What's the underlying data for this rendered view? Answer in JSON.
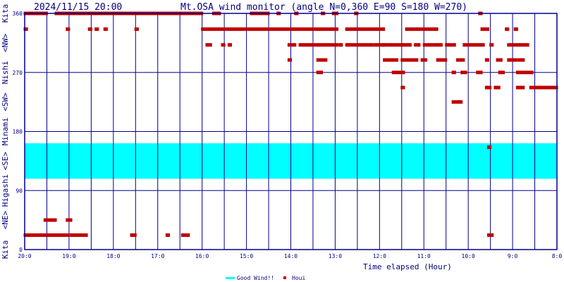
{
  "header": {
    "datetime": "2024/11/15 20:00",
    "title": "Mt.OSA wind monitor (angle N=0,360 E=90 S=180 W=270)"
  },
  "colors": {
    "frame": "#00008b",
    "band": "#00ffff",
    "marker": "#c00000",
    "text": "#000080"
  },
  "chart_data": {
    "type": "scatter",
    "title": "Mt.OSA wind monitor (angle N=0,360 E=90 S=180 W=270)",
    "xlabel": "Time elapsed (Hour)",
    "ylabel": "Kita <NE> Higashi <SE> Minami <SW> Nishi <NW> Kita",
    "xlim": [
      20,
      8
    ],
    "ylim": [
      0,
      360
    ],
    "x_ticks": [
      20,
      19,
      18,
      17,
      16,
      15,
      14,
      13,
      12,
      11,
      10,
      9,
      8
    ],
    "x_tick_labels": [
      "20:0",
      "19:0",
      "18:0",
      "17:0",
      "16:0",
      "15:0",
      "14:0",
      "13:0",
      "12:0",
      "11:0",
      "10:0",
      "9:0",
      "8:0"
    ],
    "y_ticks": [
      0,
      90,
      180,
      270,
      360
    ],
    "y_tick_labels": [
      "0",
      "90",
      "180",
      "270",
      "360"
    ],
    "ylabel_parts": [
      "Kita",
      "<NE>",
      "Higashi",
      "<SE>",
      "Minami",
      "<SW>",
      "Nishi",
      "<NW>",
      "Kita"
    ],
    "grid": true,
    "legend_position": "bottom-center",
    "good_wind_band": {
      "name": "Good Wind!!",
      "range": [
        108,
        162
      ]
    },
    "series": [
      {
        "name": "Houi",
        "segments": [
          [
            20.0,
            19.5,
            360
          ],
          [
            19.3,
            16.0,
            360
          ],
          [
            15.75,
            15.6,
            360
          ],
          [
            14.9,
            14.5,
            360
          ],
          [
            14.3,
            14.25,
            360
          ],
          [
            13.9,
            13.85,
            360
          ],
          [
            13.3,
            13.25,
            360
          ],
          [
            13.05,
            12.95,
            360
          ],
          [
            12.55,
            12.5,
            360
          ],
          [
            9.75,
            9.7,
            360
          ],
          [
            20.0,
            19.95,
            336
          ],
          [
            19.05,
            19.0,
            336
          ],
          [
            18.55,
            18.5,
            336
          ],
          [
            18.4,
            18.35,
            336
          ],
          [
            18.2,
            18.15,
            336
          ],
          [
            17.5,
            17.45,
            336
          ],
          [
            16.0,
            12.95,
            336
          ],
          [
            12.75,
            11.9,
            336
          ],
          [
            11.4,
            10.7,
            336
          ],
          [
            9.7,
            9.55,
            336
          ],
          [
            9.15,
            9.1,
            336
          ],
          [
            8.95,
            8.9,
            336
          ],
          [
            15.9,
            15.8,
            312
          ],
          [
            15.55,
            15.5,
            312
          ],
          [
            15.4,
            15.35,
            312
          ],
          [
            14.05,
            13.9,
            312
          ],
          [
            13.8,
            12.95,
            312
          ],
          [
            12.9,
            12.85,
            312
          ],
          [
            12.75,
            12.15,
            312
          ],
          [
            12.1,
            11.9,
            312
          ],
          [
            11.9,
            11.5,
            312
          ],
          [
            11.5,
            11.3,
            312
          ],
          [
            11.2,
            11.1,
            312
          ],
          [
            11.0,
            10.6,
            312
          ],
          [
            10.5,
            10.3,
            312
          ],
          [
            10.1,
            9.65,
            312
          ],
          [
            9.5,
            9.45,
            312
          ],
          [
            9.1,
            8.65,
            312
          ],
          [
            14.05,
            14.0,
            289
          ],
          [
            13.4,
            13.2,
            289
          ],
          [
            11.9,
            11.6,
            289
          ],
          [
            11.5,
            11.15,
            289
          ],
          [
            11.05,
            10.95,
            289
          ],
          [
            10.7,
            10.5,
            289
          ],
          [
            10.25,
            10.1,
            289
          ],
          [
            9.6,
            9.55,
            289
          ],
          [
            9.35,
            9.25,
            289
          ],
          [
            9.1,
            8.9,
            289
          ],
          [
            8.85,
            8.75,
            289
          ],
          [
            13.4,
            13.3,
            270
          ],
          [
            11.7,
            11.45,
            270
          ],
          [
            10.35,
            10.3,
            270
          ],
          [
            10.15,
            10.05,
            270
          ],
          [
            9.8,
            9.7,
            270
          ],
          [
            9.3,
            9.2,
            270
          ],
          [
            8.9,
            8.55,
            270
          ],
          [
            11.5,
            11.45,
            247
          ],
          [
            9.6,
            9.5,
            247
          ],
          [
            9.4,
            9.3,
            247
          ],
          [
            8.9,
            8.75,
            247
          ],
          [
            8.6,
            8.0,
            247
          ],
          [
            10.35,
            10.15,
            225
          ],
          [
            9.55,
            9.5,
            156
          ],
          [
            19.55,
            19.3,
            45
          ],
          [
            19.05,
            18.95,
            45
          ],
          [
            20.0,
            19.0,
            22
          ],
          [
            18.95,
            18.6,
            22
          ],
          [
            17.6,
            17.5,
            22
          ],
          [
            16.8,
            16.75,
            22
          ],
          [
            16.45,
            16.3,
            22
          ],
          [
            9.55,
            9.45,
            22
          ]
        ]
      }
    ]
  },
  "legend": {
    "good_wind_label": "Good Wind!!",
    "houi_label": "Houi"
  }
}
